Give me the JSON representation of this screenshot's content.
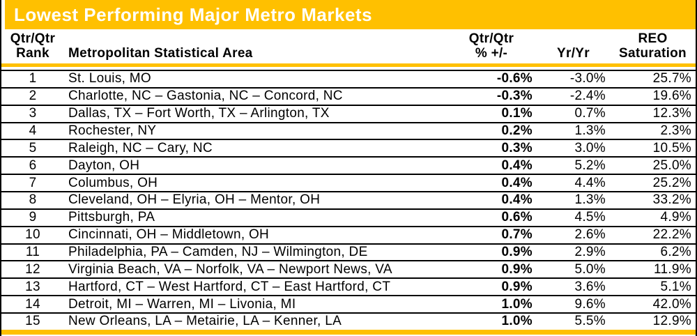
{
  "title": "Lowest Performing Major Metro Markets",
  "colors": {
    "gold_accent": "#FFC000",
    "title_text": "#FFFFFF",
    "body_text": "#000000",
    "row_divider": "#000000",
    "background": "#FFFFFF"
  },
  "headers": {
    "rank_line1": "Qtr/Qtr",
    "rank_line2": "Rank",
    "msa": "Metropolitan Statistical Area",
    "qtr_line1": "Qtr/Qtr",
    "qtr_line2": "% +/-",
    "yr": "Yr/Yr",
    "reo_line1": "REO",
    "reo_line2": "Saturation"
  },
  "chart_data": {
    "type": "table",
    "title": "Lowest Performing Major Metro Markets",
    "columns": [
      "Qtr/Qtr Rank",
      "Metropolitan Statistical Area",
      "Qtr/Qtr % +/-",
      "Yr/Yr",
      "REO Saturation"
    ],
    "rows": [
      {
        "rank": "1",
        "msa": "St. Louis, MO",
        "qtr": "-0.6%",
        "yr": "-3.0%",
        "reo": "25.7%"
      },
      {
        "rank": "2",
        "msa": "Charlotte, NC – Gastonia, NC – Concord, NC",
        "qtr": "-0.3%",
        "yr": "-2.4%",
        "reo": "19.6%"
      },
      {
        "rank": "3",
        "msa": "Dallas, TX – Fort Worth, TX – Arlington, TX",
        "qtr": "0.1%",
        "yr": "0.7%",
        "reo": "12.3%"
      },
      {
        "rank": "4",
        "msa": "Rochester, NY",
        "qtr": "0.2%",
        "yr": "1.3%",
        "reo": "2.3%"
      },
      {
        "rank": "5",
        "msa": "Raleigh, NC – Cary, NC",
        "qtr": "0.3%",
        "yr": "3.0%",
        "reo": "10.5%"
      },
      {
        "rank": "6",
        "msa": "Dayton, OH",
        "qtr": "0.4%",
        "yr": "5.2%",
        "reo": "25.0%"
      },
      {
        "rank": "7",
        "msa": "Columbus, OH",
        "qtr": "0.4%",
        "yr": "4.4%",
        "reo": "25.2%"
      },
      {
        "rank": "8",
        "msa": "Cleveland, OH – Elyria, OH – Mentor, OH",
        "qtr": "0.4%",
        "yr": "1.3%",
        "reo": "33.2%"
      },
      {
        "rank": "9",
        "msa": "Pittsburgh, PA",
        "qtr": "0.6%",
        "yr": "4.5%",
        "reo": "4.9%"
      },
      {
        "rank": "10",
        "msa": "Cincinnati, OH – Middletown, OH",
        "qtr": "0.7%",
        "yr": "2.6%",
        "reo": "22.2%"
      },
      {
        "rank": "11",
        "msa": "Philadelphia, PA – Camden, NJ – Wilmington, DE",
        "qtr": "0.9%",
        "yr": "2.9%",
        "reo": "6.2%"
      },
      {
        "rank": "12",
        "msa": "Virginia Beach, VA – Norfolk, VA – Newport News, VA",
        "qtr": "0.9%",
        "yr": "5.0%",
        "reo": "11.9%"
      },
      {
        "rank": "13",
        "msa": "Hartford, CT – West Hartford, CT – East Hartford, CT",
        "qtr": "0.9%",
        "yr": "3.6%",
        "reo": "5.1%"
      },
      {
        "rank": "14",
        "msa": "Detroit, MI – Warren, MI – Livonia, MI",
        "qtr": "1.0%",
        "yr": "9.6%",
        "reo": "42.0%"
      },
      {
        "rank": "15",
        "msa": "New Orleans, LA – Metairie, LA – Kenner, LA",
        "qtr": "1.0%",
        "yr": "5.5%",
        "reo": "12.9%"
      }
    ]
  }
}
